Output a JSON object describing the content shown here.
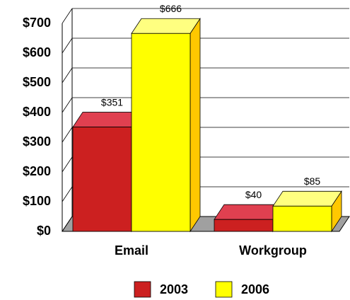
{
  "chart_data": {
    "type": "bar3d",
    "categories": [
      "Email",
      "Workgroup"
    ],
    "series": [
      {
        "name": "2003",
        "color": "#cc2020",
        "values": [
          351,
          40
        ],
        "value_labels": [
          "$351",
          "$40"
        ]
      },
      {
        "name": "2006",
        "color": "#ffff00",
        "values": [
          666,
          85
        ],
        "value_labels": [
          "$666",
          "$85"
        ]
      }
    ],
    "ylim": [
      0,
      700
    ],
    "yticks": [
      {
        "value": 0,
        "label": "$0"
      },
      {
        "value": 100,
        "label": "$100"
      },
      {
        "value": 200,
        "label": "$200"
      },
      {
        "value": 300,
        "label": "$300"
      },
      {
        "value": 400,
        "label": "$400"
      },
      {
        "value": 500,
        "label": "$500"
      },
      {
        "value": 600,
        "label": "$600"
      },
      {
        "value": 700,
        "label": "$700"
      }
    ],
    "grid": true,
    "legend": "bottom"
  }
}
